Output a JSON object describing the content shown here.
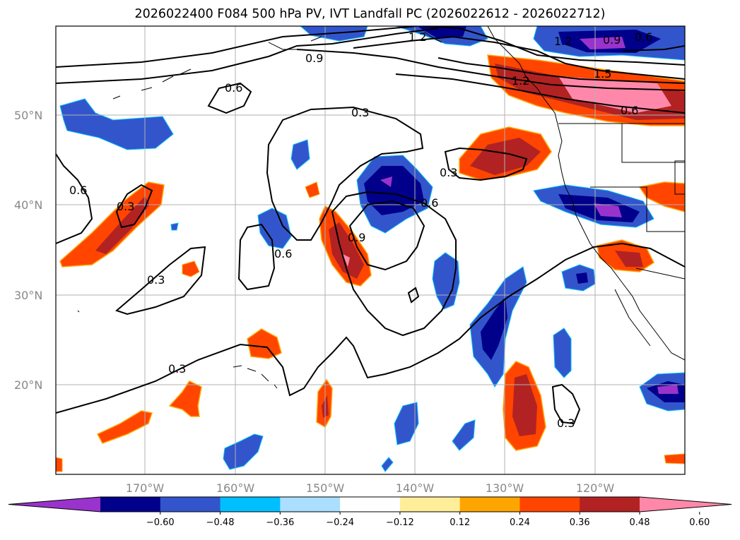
{
  "title": "2026022400 F084 500 hPa PV, IVT Landfall PC (2026022612 - 2026022712)",
  "axes": {
    "lat_labels": [
      "50°N",
      "40°N",
      "30°N",
      "20°N"
    ],
    "lon_labels": [
      "170°W",
      "160°W",
      "150°W",
      "140°W",
      "130°W",
      "120°W"
    ]
  },
  "contour_labels": [
    "1.2",
    "1.2",
    "0.9",
    "0.6",
    "0.9",
    "0.6",
    "1.2",
    "1.5",
    "0.6",
    "0.3",
    "0.3",
    "0.6",
    "0.3",
    "0.6",
    "0.9",
    "0.6",
    "0.3",
    "0.3",
    "0.3"
  ],
  "colorbar": {
    "colors": [
      "#9933cc",
      "#00008b",
      "#3355cc",
      "#00bfff",
      "#aadfff",
      "#ffffff",
      "#ffee99",
      "#ffa500",
      "#ff4500",
      "#b22222",
      "#ff88aa"
    ],
    "tick_labels": [
      "−0.60",
      "−0.48",
      "−0.36",
      "−0.24",
      "−0.12",
      "0.12",
      "0.24",
      "0.36",
      "0.48",
      "0.60"
    ]
  },
  "map": {
    "region": "North Pacific / western North America",
    "shading_variable": "IVT Landfall PC",
    "contour_variable": "500 hPa PV"
  }
}
